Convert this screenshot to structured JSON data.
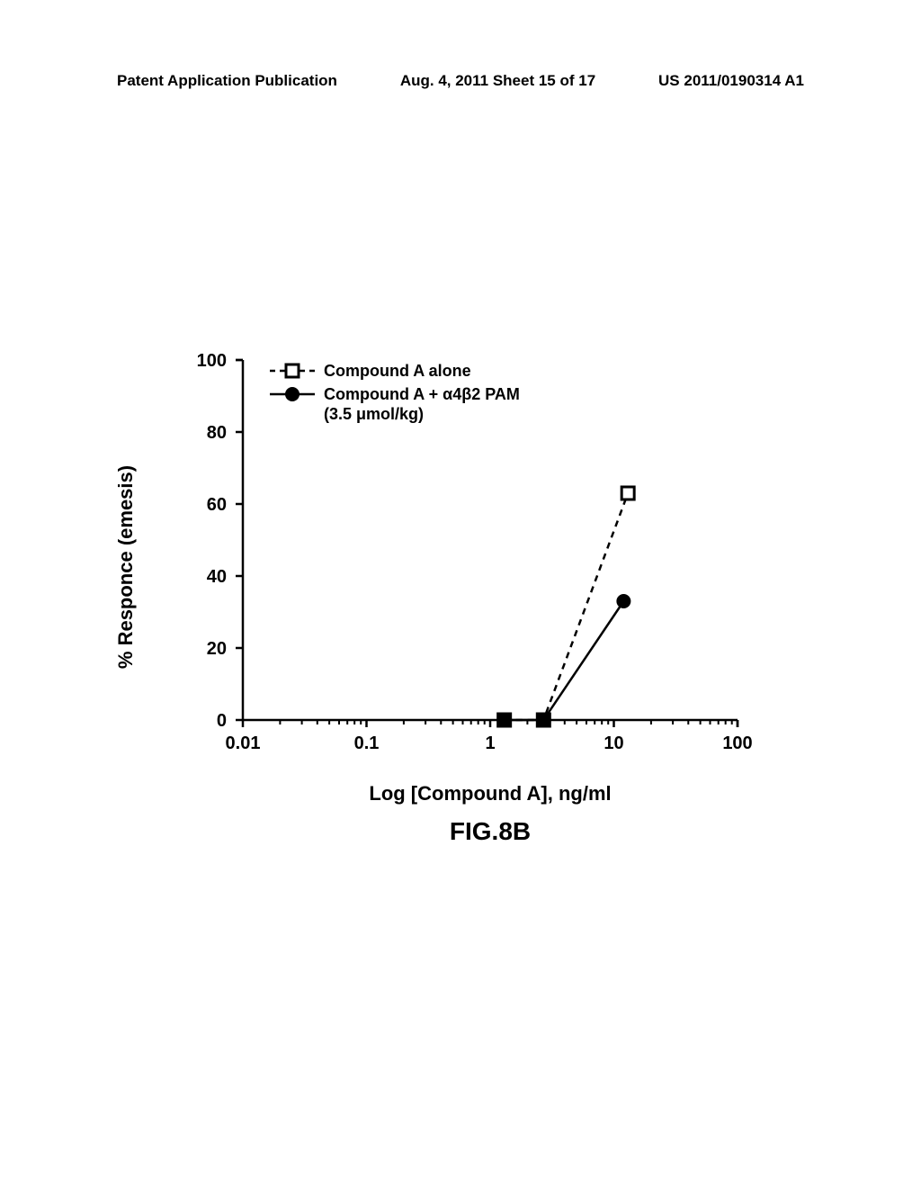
{
  "header": {
    "left": "Patent Application Publication",
    "center": "Aug. 4, 2011  Sheet 15 of 17",
    "right": "US 2011/0190314 A1"
  },
  "chart": {
    "type": "line",
    "y_label": "% Responce (emesis)",
    "x_label": "Log [Compound A], ng/ml",
    "figure_label": "FIG.8B",
    "ylim": [
      0,
      100
    ],
    "ytick_step": 20,
    "y_ticks": [
      0,
      20,
      40,
      60,
      80,
      100
    ],
    "x_scale": "log",
    "xlim": [
      0.01,
      100
    ],
    "x_major_ticks": [
      0.01,
      0.1,
      1,
      10,
      100
    ],
    "x_tick_labels": [
      "0.01",
      "0.1",
      "1",
      "10",
      "100"
    ],
    "background_color": "#ffffff",
    "axis_color": "#000000",
    "axis_width": 2.5,
    "tick_length": 8,
    "minor_tick_length": 5,
    "font_size_ticks": 20,
    "font_size_labels": 22,
    "font_size_legend": 18,
    "font_weight": "bold",
    "legend": {
      "position": "top-left-inside",
      "items": [
        {
          "label": "Compound A alone",
          "marker": "square-open",
          "line_style": "dashed",
          "color": "#000000"
        },
        {
          "label_line1": "Compound A + α4β2 PAM",
          "label_line2": "(3.5 μmol/kg)",
          "marker": "circle-filled",
          "line_style": "solid",
          "color": "#000000"
        }
      ]
    },
    "series": [
      {
        "name": "Compound A alone",
        "marker": "square-open",
        "marker_size": 14,
        "line_style": "dashed",
        "line_width": 2.5,
        "color": "#000000",
        "points": [
          {
            "x": 1.3,
            "y": 0
          },
          {
            "x": 2.7,
            "y": 0
          },
          {
            "x": 13,
            "y": 63
          }
        ]
      },
      {
        "name": "Compound A + PAM",
        "marker": "circle-filled",
        "marker_size": 16,
        "line_style": "solid",
        "line_width": 2.5,
        "color": "#000000",
        "points": [
          {
            "x": 1.3,
            "y": 0
          },
          {
            "x": 2.7,
            "y": 0
          },
          {
            "x": 12,
            "y": 33
          }
        ]
      }
    ]
  }
}
